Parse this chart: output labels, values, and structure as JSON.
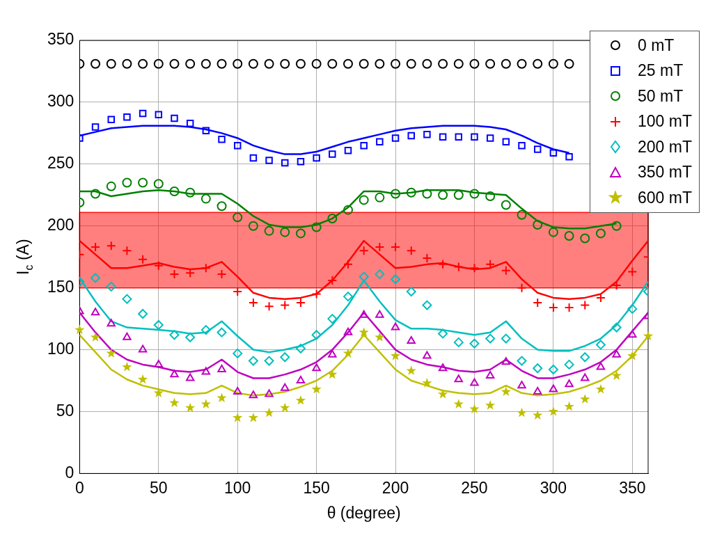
{
  "chart_data": {
    "type": "scatter",
    "xlabel": "θ (degree)",
    "ylabel": "I$_{c}$ (A)",
    "x": [
      0,
      10,
      20,
      30,
      40,
      50,
      60,
      70,
      80,
      90,
      100,
      110,
      120,
      130,
      140,
      150,
      160,
      170,
      180,
      190,
      200,
      210,
      220,
      230,
      240,
      250,
      260,
      270,
      280,
      290,
      300,
      310,
      320,
      330,
      340,
      350,
      360
    ],
    "xlim": [
      0,
      360
    ],
    "xticks": [
      0,
      50,
      100,
      150,
      200,
      250,
      300,
      350
    ],
    "ylim": [
      0,
      350
    ],
    "yticks": [
      0,
      50,
      100,
      150,
      200,
      250,
      300,
      350
    ],
    "grid": true,
    "legend": "top right",
    "bands": [
      {
        "axis": "y",
        "from": 150,
        "to": 211,
        "color": "#ff0000"
      }
    ],
    "series": [
      {
        "name": "0 mT",
        "color": "#000000",
        "marker": "circle",
        "values": [
          331,
          331,
          331,
          331,
          331,
          331,
          331,
          331,
          331,
          331,
          331,
          331,
          331,
          331,
          331,
          331,
          331,
          331,
          331,
          331,
          331,
          331,
          331,
          331,
          331,
          331,
          331,
          331,
          331,
          331,
          331,
          331,
          null,
          null,
          null,
          null,
          null
        ]
      },
      {
        "name": "25 mT",
        "color": "#0000ff",
        "marker": "square",
        "values": [
          271,
          280,
          286,
          288,
          291,
          290,
          287,
          283,
          277,
          270,
          265,
          255,
          253,
          251,
          252,
          255,
          258,
          261,
          265,
          268,
          271,
          273,
          274,
          272,
          272,
          272,
          271,
          268,
          265,
          262,
          259,
          256,
          null,
          null,
          null,
          null,
          null
        ]
      },
      {
        "name": "50 mT",
        "color": "#008000",
        "marker": "circle",
        "values": [
          219,
          226,
          232,
          235,
          235,
          234,
          228,
          227,
          222,
          216,
          207,
          200,
          196,
          195,
          194,
          199,
          206,
          213,
          221,
          223,
          226,
          227,
          226,
          225,
          225,
          226,
          224,
          217,
          209,
          201,
          195,
          192,
          190,
          194,
          200,
          null,
          null
        ]
      },
      {
        "name": "100 mT",
        "color": "#ff0000",
        "marker": "cross",
        "values": [
          177,
          183,
          184,
          180,
          173,
          168,
          161,
          162,
          166,
          161,
          147,
          138,
          135,
          136,
          138,
          145,
          156,
          169,
          180,
          183,
          183,
          180,
          174,
          169,
          167,
          166,
          169,
          164,
          150,
          138,
          134,
          134,
          136,
          142,
          152,
          163,
          175
        ]
      },
      {
        "name": "200 mT",
        "color": "#00bfbf",
        "marker": "diamond",
        "values": [
          155,
          158,
          151,
          141,
          129,
          120,
          112,
          110,
          116,
          114,
          97,
          91,
          91,
          94,
          101,
          112,
          125,
          143,
          159,
          161,
          157,
          147,
          136,
          113,
          106,
          105,
          109,
          109,
          91,
          85,
          84,
          88,
          94,
          104,
          118,
          133,
          147
        ]
      },
      {
        "name": "350 mT",
        "color": "#bf00bf",
        "marker": "triangle",
        "values": [
          131,
          130,
          121,
          110,
          100,
          88,
          80,
          77,
          82,
          84,
          66,
          63,
          64,
          69,
          75,
          85,
          96,
          114,
          128,
          128,
          118,
          107,
          95,
          85,
          76,
          73,
          79,
          90,
          71,
          66,
          68,
          72,
          77,
          86,
          96,
          112,
          127
        ]
      },
      {
        "name": "600 mT",
        "color": "#bfbf00",
        "marker": "star",
        "values": [
          116,
          110,
          97,
          86,
          76,
          65,
          57,
          53,
          56,
          61,
          45,
          45,
          49,
          53,
          59,
          68,
          80,
          97,
          114,
          110,
          95,
          83,
          73,
          64,
          56,
          52,
          55,
          66,
          49,
          47,
          50,
          54,
          60,
          68,
          79,
          95,
          111
        ]
      },
      {
        "type": "line",
        "color": "#0000ff",
        "x": [
          0,
          10,
          20,
          30,
          40,
          50,
          60,
          70,
          80,
          90,
          100,
          110,
          120,
          130,
          140,
          150,
          160,
          170,
          180,
          190,
          200,
          210,
          220,
          230,
          240,
          250,
          260,
          270,
          280,
          290,
          300,
          310
        ],
        "values": [
          273,
          276,
          279,
          280,
          281,
          281,
          281,
          280,
          278,
          275,
          271,
          265,
          261,
          258,
          258,
          260,
          264,
          268,
          271,
          274,
          277,
          279,
          280,
          281,
          281,
          281,
          280,
          278,
          273,
          267,
          262,
          259
        ]
      },
      {
        "type": "line",
        "color": "#008000",
        "x": [
          0,
          10,
          20,
          30,
          40,
          50,
          60,
          70,
          80,
          90,
          100,
          110,
          120,
          130,
          140,
          150,
          160,
          170,
          180,
          190,
          200,
          210,
          220,
          230,
          240,
          250,
          260,
          270,
          280,
          290,
          300,
          310,
          320,
          330,
          340
        ],
        "values": [
          228,
          228,
          224,
          226,
          228,
          229,
          228,
          226,
          226,
          226,
          218,
          208,
          201,
          199,
          199,
          201,
          206,
          215,
          228,
          228,
          226,
          227,
          229,
          229,
          229,
          227,
          226,
          225,
          214,
          204,
          199,
          198,
          198,
          200,
          202
        ]
      },
      {
        "type": "line",
        "color": "#ff0000",
        "x": [
          0,
          10,
          20,
          30,
          40,
          50,
          60,
          70,
          80,
          90,
          100,
          110,
          120,
          130,
          140,
          150,
          160,
          170,
          180,
          190,
          200,
          210,
          220,
          230,
          240,
          250,
          260,
          270,
          280,
          290,
          300,
          310,
          320,
          330,
          340,
          350,
          360
        ],
        "values": [
          188,
          177,
          166,
          166,
          168,
          170,
          167,
          165,
          166,
          171,
          159,
          146,
          142,
          141,
          142,
          145,
          156,
          171,
          188,
          177,
          166,
          167,
          169,
          170,
          167,
          165,
          166,
          171,
          157,
          146,
          142,
          141,
          142,
          145,
          155,
          172,
          188
        ]
      },
      {
        "type": "line",
        "color": "#00bfbf",
        "x": [
          0,
          10,
          20,
          30,
          40,
          50,
          60,
          70,
          80,
          90,
          100,
          110,
          120,
          130,
          140,
          150,
          160,
          170,
          180,
          190,
          200,
          210,
          220,
          230,
          240,
          250,
          260,
          270,
          280,
          290,
          300,
          310,
          320,
          330,
          340,
          350,
          360
        ],
        "values": [
          158,
          139,
          123,
          118,
          117,
          116,
          115,
          113,
          114,
          123,
          111,
          100,
          98,
          100,
          103,
          109,
          120,
          136,
          156,
          139,
          124,
          117,
          117,
          116,
          114,
          112,
          114,
          123,
          109,
          100,
          99,
          99,
          103,
          109,
          120,
          136,
          155
        ]
      },
      {
        "type": "line",
        "color": "#bf00bf",
        "x": [
          0,
          10,
          20,
          30,
          40,
          50,
          60,
          70,
          80,
          90,
          100,
          110,
          120,
          130,
          140,
          150,
          160,
          170,
          180,
          190,
          200,
          210,
          220,
          230,
          240,
          250,
          260,
          270,
          280,
          290,
          300,
          310,
          320,
          330,
          340,
          350,
          360
        ],
        "values": [
          130,
          114,
          100,
          92,
          88,
          86,
          83,
          82,
          84,
          92,
          82,
          77,
          77,
          80,
          84,
          90,
          100,
          114,
          130,
          115,
          100,
          92,
          88,
          86,
          83,
          82,
          84,
          92,
          83,
          77,
          77,
          80,
          84,
          90,
          100,
          115,
          130
        ]
      },
      {
        "type": "line",
        "color": "#bfbf00",
        "x": [
          0,
          10,
          20,
          30,
          40,
          50,
          60,
          70,
          80,
          90,
          100,
          110,
          120,
          130,
          140,
          150,
          160,
          170,
          180,
          190,
          200,
          210,
          220,
          230,
          240,
          250,
          260,
          270,
          280,
          290,
          300,
          310,
          320,
          330,
          340,
          350,
          360
        ],
        "values": [
          112,
          98,
          84,
          76,
          71,
          68,
          65,
          64,
          65,
          71,
          65,
          63,
          64,
          66,
          70,
          75,
          83,
          96,
          112,
          98,
          84,
          75,
          71,
          67,
          65,
          64,
          65,
          71,
          65,
          63,
          64,
          66,
          70,
          75,
          83,
          95,
          111
        ]
      }
    ]
  }
}
